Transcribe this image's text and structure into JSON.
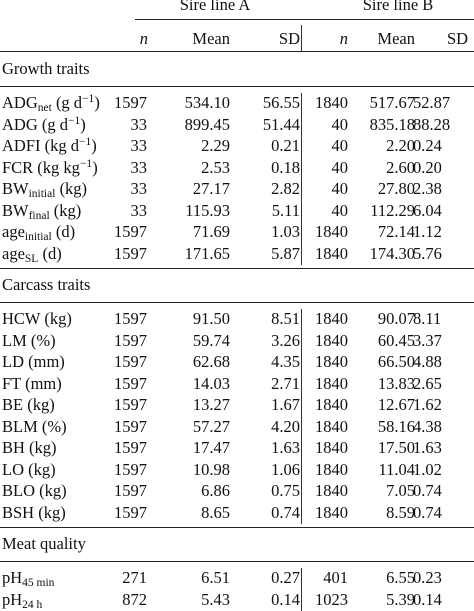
{
  "headers": {
    "groups": [
      "Sire line A",
      "Sire line B"
    ],
    "columns": [
      "n",
      "Mean",
      "SD",
      "n",
      "Mean",
      "SD"
    ]
  },
  "sections": [
    {
      "title": "Growth traits",
      "rows": [
        {
          "label": "ADG",
          "sub": "net",
          "unit": " (g d",
          "sup": "−1",
          "tail": ")",
          "values": [
            "1597",
            "534.10",
            "56.55",
            "1840",
            "517.67",
            "52.87"
          ]
        },
        {
          "label": "ADG (g d",
          "sub": "",
          "unit": "",
          "sup": "−1",
          "tail": ")",
          "values": [
            "33",
            "899.45",
            "51.44",
            "40",
            "835.18",
            "88.28"
          ]
        },
        {
          "label": "ADFI (kg d",
          "sub": "",
          "unit": "",
          "sup": "−1",
          "tail": ")",
          "values": [
            "33",
            "2.29",
            "0.21",
            "40",
            "2.20",
            "0.24"
          ]
        },
        {
          "label": "FCR (kg kg",
          "sub": "",
          "unit": "",
          "sup": "−1",
          "tail": ")",
          "values": [
            "33",
            "2.53",
            "0.18",
            "40",
            "2.60",
            "0.20"
          ]
        },
        {
          "label": "BW",
          "sub": "initial",
          "unit": " (kg)",
          "sup": "",
          "tail": "",
          "values": [
            "33",
            "27.17",
            "2.82",
            "40",
            "27.80",
            "2.38"
          ]
        },
        {
          "label": "BW",
          "sub": "final",
          "unit": " (kg)",
          "sup": "",
          "tail": "",
          "values": [
            "33",
            "115.93",
            "5.11",
            "40",
            "112.29",
            "6.04"
          ]
        },
        {
          "label": "age",
          "sub": "initial",
          "unit": " (d)",
          "sup": "",
          "tail": "",
          "values": [
            "1597",
            "71.69",
            "1.03",
            "1840",
            "72.14",
            "1.12"
          ]
        },
        {
          "label": "age",
          "sub": "SL",
          "unit": " (d)",
          "sup": "",
          "tail": "",
          "values": [
            "1597",
            "171.65",
            "5.87",
            "1840",
            "174.30",
            "5.76"
          ]
        }
      ]
    },
    {
      "title": "Carcass traits",
      "rows": [
        {
          "label": "HCW (kg)",
          "sub": "",
          "unit": "",
          "sup": "",
          "tail": "",
          "values": [
            "1597",
            "91.50",
            "8.51",
            "1840",
            "90.07",
            "8.11"
          ]
        },
        {
          "label": "LM (%)",
          "sub": "",
          "unit": "",
          "sup": "",
          "tail": "",
          "values": [
            "1597",
            "59.74",
            "3.26",
            "1840",
            "60.45",
            "3.37"
          ]
        },
        {
          "label": "LD (mm)",
          "sub": "",
          "unit": "",
          "sup": "",
          "tail": "",
          "values": [
            "1597",
            "62.68",
            "4.35",
            "1840",
            "66.50",
            "4.88"
          ]
        },
        {
          "label": "FT (mm)",
          "sub": "",
          "unit": "",
          "sup": "",
          "tail": "",
          "values": [
            "1597",
            "14.03",
            "2.71",
            "1840",
            "13.83",
            "2.65"
          ]
        },
        {
          "label": "BE (kg)",
          "sub": "",
          "unit": "",
          "sup": "",
          "tail": "",
          "values": [
            "1597",
            "13.27",
            "1.67",
            "1840",
            "12.67",
            "1.62"
          ]
        },
        {
          "label": "BLM (%)",
          "sub": "",
          "unit": "",
          "sup": "",
          "tail": "",
          "values": [
            "1597",
            "57.27",
            "4.20",
            "1840",
            "58.16",
            "4.38"
          ]
        },
        {
          "label": "BH (kg)",
          "sub": "",
          "unit": "",
          "sup": "",
          "tail": "",
          "values": [
            "1597",
            "17.47",
            "1.63",
            "1840",
            "17.50",
            "1.63"
          ]
        },
        {
          "label": "LO (kg)",
          "sub": "",
          "unit": "",
          "sup": "",
          "tail": "",
          "values": [
            "1597",
            "10.98",
            "1.06",
            "1840",
            "11.04",
            "1.02"
          ]
        },
        {
          "label": "BLO (kg)",
          "sub": "",
          "unit": "",
          "sup": "",
          "tail": "",
          "values": [
            "1597",
            "6.86",
            "0.75",
            "1840",
            "7.05",
            "0.74"
          ]
        },
        {
          "label": "BSH (kg)",
          "sub": "",
          "unit": "",
          "sup": "",
          "tail": "",
          "values": [
            "1597",
            "8.65",
            "0.74",
            "1840",
            "8.59",
            "0.74"
          ]
        }
      ]
    },
    {
      "title": "Meat quality",
      "rows": [
        {
          "label": "pH",
          "sub": "45 min",
          "unit": "",
          "sup": "",
          "tail": "",
          "values": [
            "271",
            "6.51",
            "0.27",
            "401",
            "6.55",
            "0.23"
          ]
        },
        {
          "label": "pH",
          "sub": "24 h",
          "unit": "",
          "sup": "",
          "tail": "",
          "values": [
            "872",
            "5.43",
            "0.14",
            "1023",
            "5.39",
            "0.14"
          ]
        }
      ]
    }
  ]
}
